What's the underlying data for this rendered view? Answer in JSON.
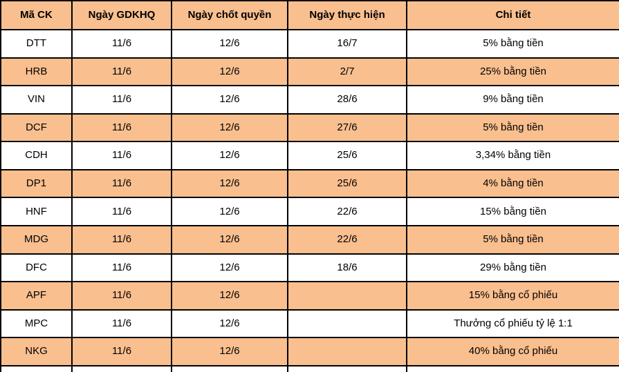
{
  "colors": {
    "accent_orange": "#FABF8F",
    "row_white": "#FFFFFF",
    "grid_border": "#000000",
    "text": "#000000"
  },
  "table": {
    "headers": [
      "Mã CK",
      "Ngày GDKHQ",
      "Ngày chốt quyền",
      "Ngày thực hiện",
      "Chi tiết"
    ],
    "rows": [
      [
        "DTT",
        "11/6",
        "12/6",
        "16/7",
        "5% bằng tiền"
      ],
      [
        "HRB",
        "11/6",
        "12/6",
        "2/7",
        "25% bằng tiền"
      ],
      [
        "VIN",
        "11/6",
        "12/6",
        "28/6",
        "9% bằng tiền"
      ],
      [
        "DCF",
        "11/6",
        "12/6",
        "27/6",
        "5% bằng tiền"
      ],
      [
        "CDH",
        "11/6",
        "12/6",
        "25/6",
        "3,34% bằng tiền"
      ],
      [
        "DP1",
        "11/6",
        "12/6",
        "25/6",
        "4% bằng tiền"
      ],
      [
        "HNF",
        "11/6",
        "12/6",
        "22/6",
        "15% bằng tiền"
      ],
      [
        "MDG",
        "11/6",
        "12/6",
        "22/6",
        "5% bằng tiền"
      ],
      [
        "DFC",
        "11/6",
        "12/6",
        "18/6",
        "29% bằng tiền"
      ],
      [
        "APF",
        "11/6",
        "12/6",
        "",
        "15% bằng cổ phiếu"
      ],
      [
        "MPC",
        "11/6",
        "12/6",
        "",
        "Thưởng cổ phiếu tỷ lệ 1:1"
      ],
      [
        "NKG",
        "11/6",
        "12/6",
        "",
        "40% bằng cổ phiếu"
      ]
    ]
  }
}
